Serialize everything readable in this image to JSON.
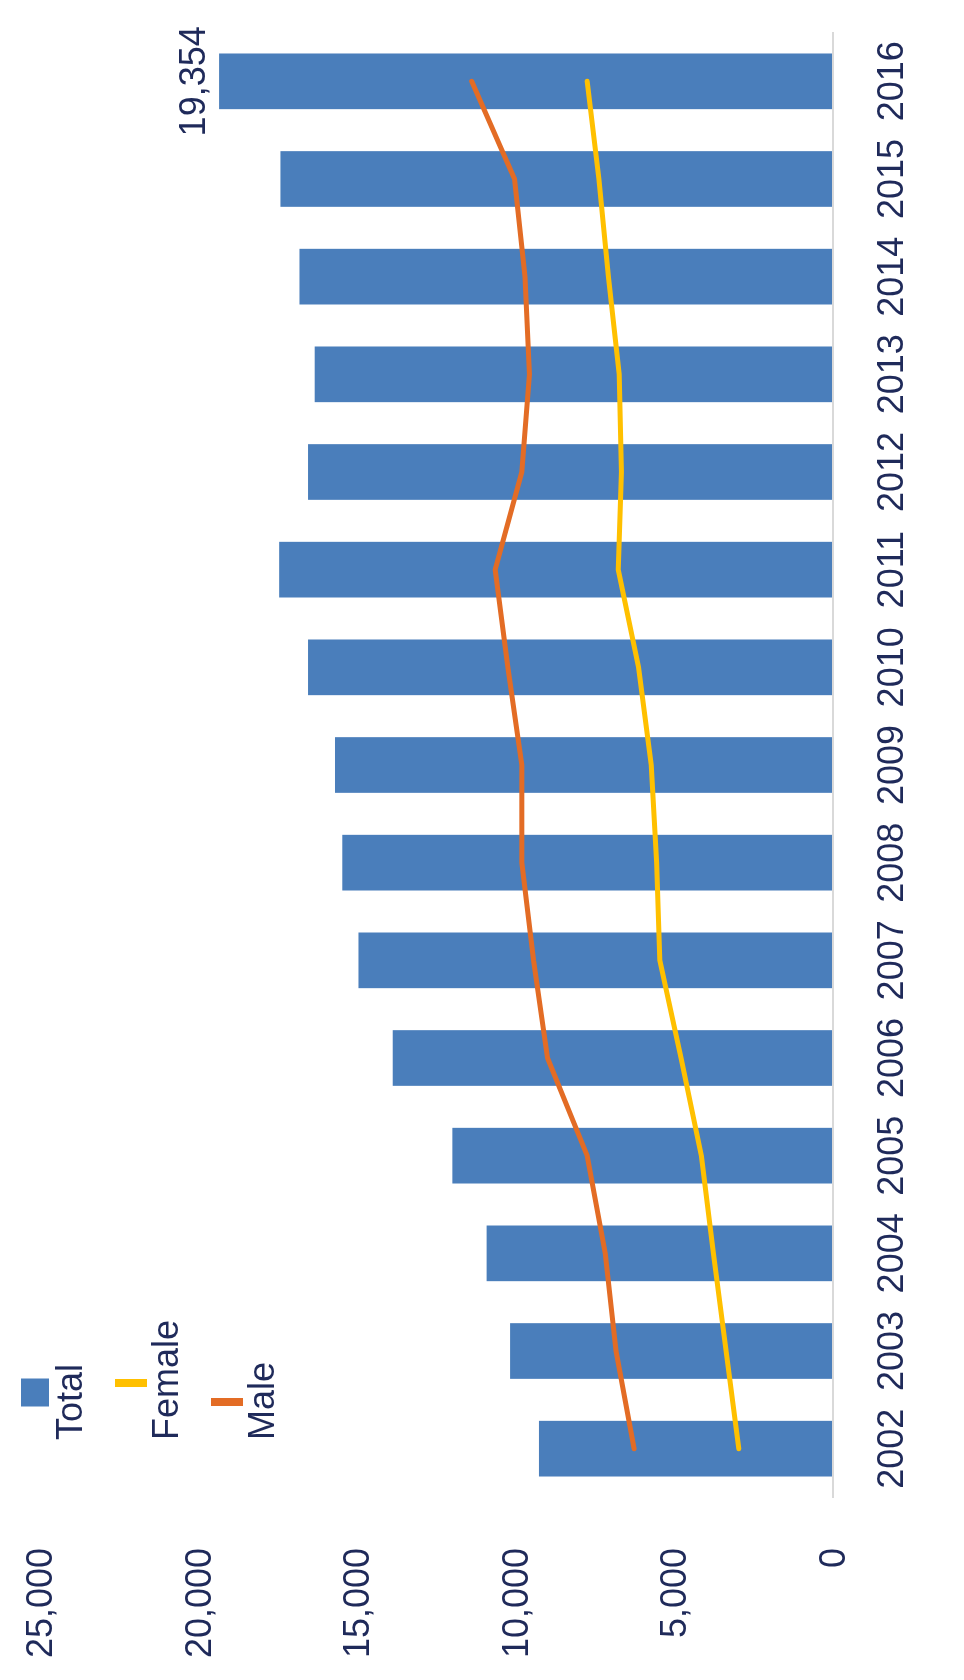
{
  "chart_data": {
    "type": "bar",
    "orientation": "horizontal",
    "categories": [
      "2016",
      "2015",
      "2014",
      "2013",
      "2012",
      "2011",
      "2010",
      "2009",
      "2008",
      "2007",
      "2006",
      "2005",
      "2004",
      "2003",
      "2002"
    ],
    "series": [
      {
        "name": "Total",
        "color": "#4a7ebb",
        "values": [
          19354,
          17420,
          16820,
          16340,
          16550,
          17460,
          16550,
          15700,
          15470,
          14960,
          13880,
          12000,
          10920,
          10180,
          9270
        ],
        "value_labels": [
          "19,354",
          null,
          null,
          null,
          null,
          null,
          null,
          null,
          null,
          null,
          null,
          null,
          null,
          null,
          null
        ]
      },
      {
        "name": "Female",
        "type": "line",
        "color": "#ffc000",
        "values": [
          7750,
          7380,
          7080,
          6740,
          6670,
          6770,
          6130,
          5730,
          5560,
          5460,
          4790,
          4150,
          3770,
          3370,
          2970
        ]
      },
      {
        "name": "Male",
        "type": "line",
        "color": "#e36c25",
        "values": [
          11390,
          10040,
          9710,
          9570,
          9810,
          10650,
          10250,
          9810,
          9810,
          9440,
          9000,
          7750,
          7180,
          6840,
          6270
        ]
      }
    ],
    "xlim": [
      25000,
      0
    ],
    "xticks": [
      {
        "value": 25000,
        "label": "25,000"
      },
      {
        "value": 20000,
        "label": "20,000"
      },
      {
        "value": 15000,
        "label": "15,000"
      },
      {
        "value": 10000,
        "label": "10,000"
      },
      {
        "value": 5000,
        "label": "5,000"
      },
      0
    ],
    "grid": false,
    "legend": "bottom left",
    "marker": "none",
    "line_style": "solid"
  }
}
